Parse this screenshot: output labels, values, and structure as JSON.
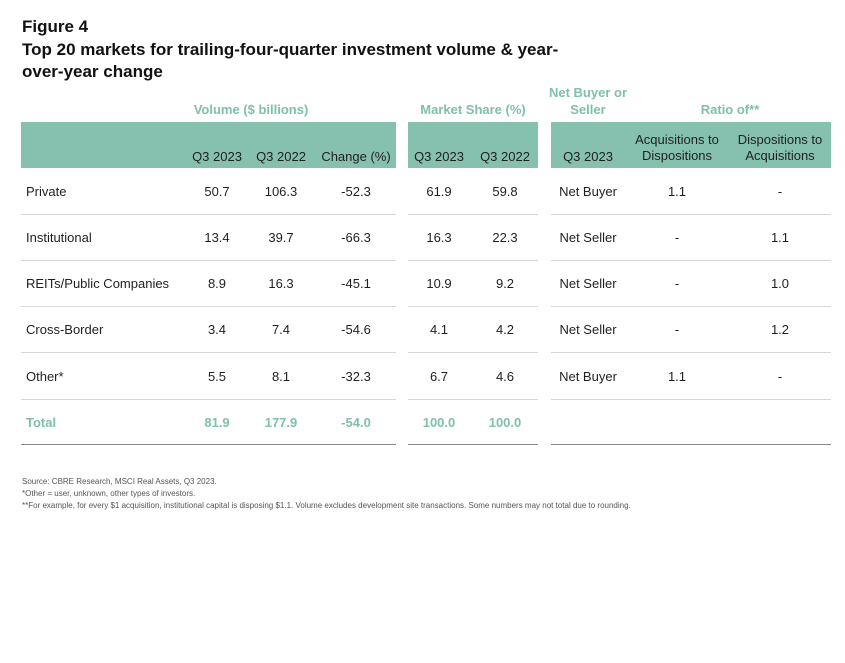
{
  "figure": {
    "label": "Figure 4",
    "title": "Top 20 markets for trailing-four-quarter investment volume & year-over-year change"
  },
  "groups": {
    "volume": "Volume ($ billions)",
    "market_share": "Market Share (%)",
    "net_buyer": "Net Buyer or Seller",
    "ratio": "Ratio of**"
  },
  "columns": {
    "vol_q3_2023": "Q3 2023",
    "vol_q3_2022": "Q3 2022",
    "vol_change": "Change (%)",
    "ms_q3_2023": "Q3 2023",
    "ms_q3_2022": "Q3 2022",
    "nb_q3_2023": "Q3 2023",
    "acq_to_disp": "Acquisitions to Dispositions",
    "disp_to_acq": "Dispositions to Acquisitions"
  },
  "rows": [
    {
      "label": "Private",
      "vol_2023": "50.7",
      "vol_2022": "106.3",
      "change": "-52.3",
      "ms_2023": "61.9",
      "ms_2022": "59.8",
      "net": "Net Buyer",
      "acq": "1.1",
      "disp": "-"
    },
    {
      "label": "Institutional",
      "vol_2023": "13.4",
      "vol_2022": "39.7",
      "change": "-66.3",
      "ms_2023": "16.3",
      "ms_2022": "22.3",
      "net": "Net Seller",
      "acq": "-",
      "disp": "1.1"
    },
    {
      "label": "REITs/Public Companies",
      "vol_2023": "8.9",
      "vol_2022": "16.3",
      "change": "-45.1",
      "ms_2023": "10.9",
      "ms_2022": "9.2",
      "net": "Net Seller",
      "acq": "-",
      "disp": "1.0"
    },
    {
      "label": "Cross-Border",
      "vol_2023": "3.4",
      "vol_2022": "7.4",
      "change": "-54.6",
      "ms_2023": "4.1",
      "ms_2022": "4.2",
      "net": "Net Seller",
      "acq": "-",
      "disp": "1.2"
    },
    {
      "label": "Other*",
      "vol_2023": "5.5",
      "vol_2022": "8.1",
      "change": "-32.3",
      "ms_2023": "6.7",
      "ms_2022": "4.6",
      "net": "Net Buyer",
      "acq": "1.1",
      "disp": "-"
    },
    {
      "label": "Total",
      "vol_2023": "81.9",
      "vol_2022": "177.9",
      "change": "-54.0",
      "ms_2023": "100.0",
      "ms_2022": "100.0",
      "net": "",
      "acq": "",
      "disp": ""
    }
  ],
  "footnotes": {
    "source": "Source: CBRE Research, MSCI Real Assets, Q3 2023.",
    "other": "*Other = user, unknown, other types of investors.",
    "example": "**For example, for every $1 acquisition, institutional capital is disposing $1.1. Volume excludes development site transactions. Some numbers may not total due to rounding."
  }
}
